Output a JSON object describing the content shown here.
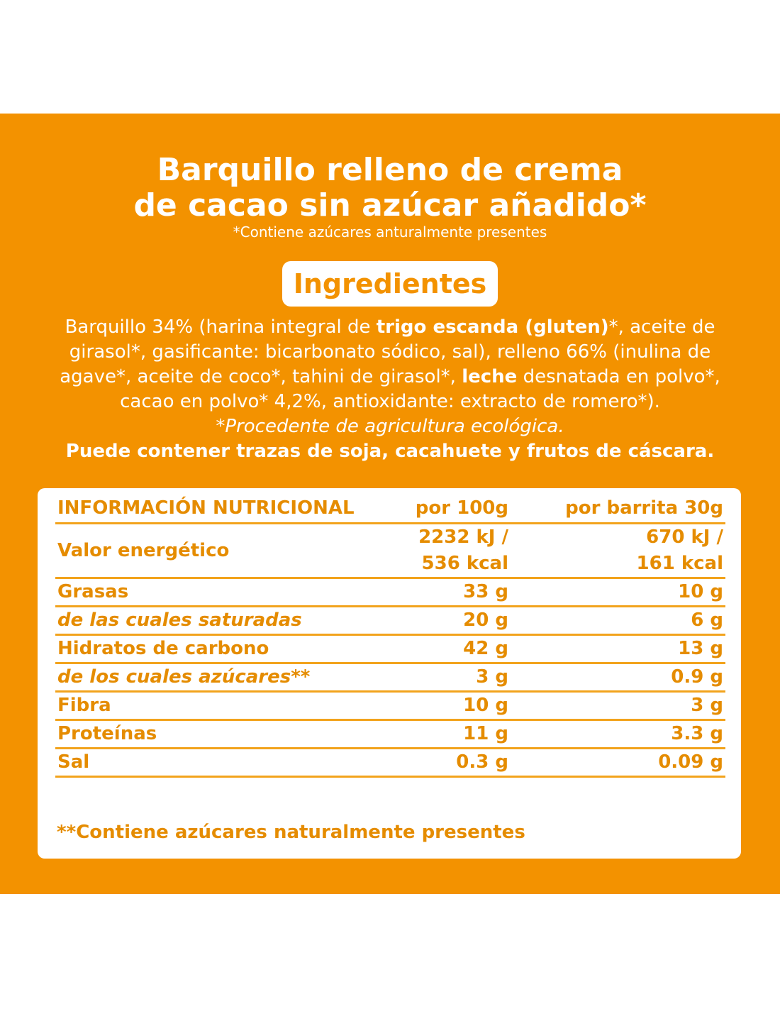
{
  "header": {
    "title_lines": [
      "Barquillo relleno de crema",
      "de cacao sin azúcar añadido*"
    ],
    "subtitle": "*Contiene azúcares anturalmente presentes"
  },
  "ingredients": {
    "heading": "Ingredientes",
    "segments": [
      {
        "text": "Barquillo 34% (harina integral de ",
        "bold": false
      },
      {
        "text": "trigo escanda (gluten)",
        "bold": true
      },
      {
        "text": "*, aceite de girasol*, gasificante: bicarbonato sódico, sal), relleno 66% (inulina de agave*, aceite de coco*, tahini de girasol*, ",
        "bold": false
      },
      {
        "text": "leche",
        "bold": true
      },
      {
        "text": " desnatada en polvo*, cacao en polvo* 4,2%, antioxidante: extracto de romero*).",
        "bold": false
      }
    ],
    "organic_note": "*Procedente de agricultura ecológica.",
    "allergen_note": "Puede contener trazas de soja, cacahuete y frutos de cáscara."
  },
  "table": {
    "columns": [
      "INFORMACIÓN NUTRICIONAL",
      "por 100g",
      "por barrita 30g"
    ],
    "rows": [
      {
        "label": "Valor energético",
        "italic": false,
        "per_100g": [
          "2232 kJ /",
          "536 kcal"
        ],
        "per_bar": [
          "670 kJ /",
          "161 kcal"
        ]
      },
      {
        "label": "Grasas",
        "italic": false,
        "per_100g": [
          "33 g"
        ],
        "per_bar": [
          "10 g"
        ]
      },
      {
        "label": "de las cuales saturadas",
        "italic": true,
        "per_100g": [
          "20 g"
        ],
        "per_bar": [
          "6 g"
        ]
      },
      {
        "label": "Hidratos de carbono",
        "italic": false,
        "per_100g": [
          "42 g"
        ],
        "per_bar": [
          "13 g"
        ]
      },
      {
        "label": "de los cuales azúcares**",
        "italic": true,
        "per_100g": [
          "3 g"
        ],
        "per_bar": [
          "0.9 g"
        ]
      },
      {
        "label": "Fibra",
        "italic": false,
        "per_100g": [
          "10 g"
        ],
        "per_bar": [
          "3 g"
        ]
      },
      {
        "label": "Proteínas",
        "italic": false,
        "per_100g": [
          "11 g"
        ],
        "per_bar": [
          "3.3 g"
        ]
      },
      {
        "label": "Sal",
        "italic": false,
        "per_100g": [
          "0.3 g"
        ],
        "per_bar": [
          "0.09 g"
        ]
      }
    ],
    "footnote": "**Contiene azúcares naturalmente presentes"
  }
}
